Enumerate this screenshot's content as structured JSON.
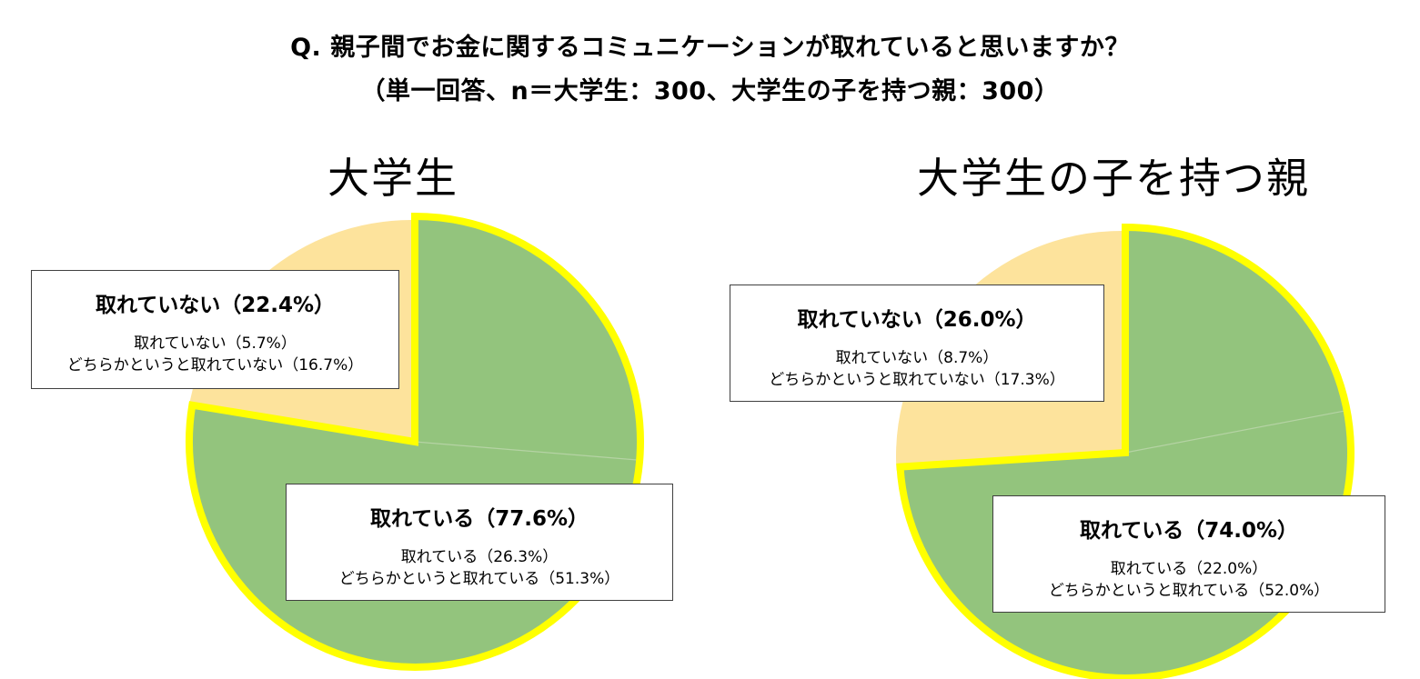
{
  "question": {
    "line1": "Q.  親子間でお金に関するコミュニケーションが取れていると思いますか？",
    "line2": "（単一回答、n＝大学生：300、大学生の子を持つ親：300）"
  },
  "colors": {
    "toreteiru": "#93c47d",
    "toreteinai": "#fde39c",
    "highlight_border": "#ffff00",
    "divider": "#b5d3a4"
  },
  "chart_data": [
    {
      "type": "pie",
      "title": "大学生",
      "slices": [
        {
          "label": "取れている",
          "value": 77.6,
          "breakdown": [
            {
              "label": "取れている",
              "value": 26.3
            },
            {
              "label": "どちらかというと取れている",
              "value": 51.3
            }
          ]
        },
        {
          "label": "取れていない",
          "value": 22.4,
          "breakdown": [
            {
              "label": "取れていない",
              "value": 5.7
            },
            {
              "label": "どちらかというと取れていない",
              "value": 16.7
            }
          ]
        }
      ],
      "labels": {
        "yes_head": "取れている（77.6%）",
        "yes_l1": "取れている（26.3%）",
        "yes_l2": "どちらかというと取れている（51.3%）",
        "no_head": "取れていない（22.4%）",
        "no_l1": "取れていない（5.7%）",
        "no_l2": "どちらかというと取れていない（16.7%）"
      }
    },
    {
      "type": "pie",
      "title": "大学生の子を持つ親",
      "slices": [
        {
          "label": "取れている",
          "value": 74.0,
          "breakdown": [
            {
              "label": "取れている",
              "value": 22.0
            },
            {
              "label": "どちらかというと取れている",
              "value": 52.0
            }
          ]
        },
        {
          "label": "取れていない",
          "value": 26.0,
          "breakdown": [
            {
              "label": "取れていない",
              "value": 8.7
            },
            {
              "label": "どちらかというと取れていない",
              "value": 17.3
            }
          ]
        }
      ],
      "labels": {
        "yes_head": "取れている（74.0%）",
        "yes_l1": "取れている（22.0%）",
        "yes_l2": "どちらかというと取れている（52.0%）",
        "no_head": "取れていない（26.0%）",
        "no_l1": "取れていない（8.7%）",
        "no_l2": "どちらかというと取れていない（17.3%）"
      }
    }
  ]
}
